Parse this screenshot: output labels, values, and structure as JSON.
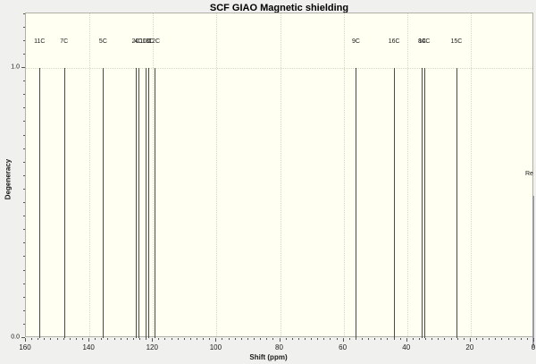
{
  "title": "SCF GIAO Magnetic shielding",
  "colors": {
    "window_bg": "#f0f0ee",
    "plot_bg": "#fffff2",
    "frame": "#b0b0a6",
    "grid": "#d6d6c6",
    "peak": "#4b4b45",
    "text": "#1a1a1a"
  },
  "right_edge_text": "Re",
  "chart_data": {
    "type": "bar",
    "subtype": "stick-spectrum",
    "title": "SCF GIAO Magnetic shielding",
    "xlabel": "Shift (ppm)",
    "ylabel": "Degeneracy",
    "xlim": [
      160,
      0
    ],
    "x_axis_reversed": true,
    "ylim": [
      0,
      1.2
    ],
    "x_major_ticks": [
      160,
      140,
      120,
      100,
      80,
      60,
      40,
      20,
      0
    ],
    "x_minor_tick_step": 2,
    "y_ticks": [
      {
        "value": 0.0,
        "label": "0.0"
      },
      {
        "value": 1.0,
        "label": "1.0"
      }
    ],
    "y_minor_tick_step": 0.05,
    "grid": "dotted",
    "peaks": [
      {
        "shift_ppm": 155.7,
        "degeneracy": 1.0,
        "label": "11C"
      },
      {
        "shift_ppm": 148.0,
        "degeneracy": 1.0,
        "label": "7C"
      },
      {
        "shift_ppm": 135.7,
        "degeneracy": 1.0,
        "label": "5C"
      },
      {
        "shift_ppm": 125.4,
        "degeneracy": 1.0,
        "label": "2C"
      },
      {
        "shift_ppm": 124.6,
        "degeneracy": 1.0,
        "label": "4C"
      },
      {
        "shift_ppm": 122.4,
        "degeneracy": 1.0,
        "label": "10C"
      },
      {
        "shift_ppm": 121.6,
        "degeneracy": 1.0,
        "label": "13C"
      },
      {
        "shift_ppm": 119.6,
        "degeneracy": 1.0,
        "label": "12C"
      },
      {
        "shift_ppm": 56.1,
        "degeneracy": 1.0,
        "label": "9C"
      },
      {
        "shift_ppm": 44.1,
        "degeneracy": 1.0,
        "label": "16C"
      },
      {
        "shift_ppm": 35.3,
        "degeneracy": 1.0,
        "label": "8C"
      },
      {
        "shift_ppm": 34.6,
        "degeneracy": 1.0,
        "label": "14C"
      },
      {
        "shift_ppm": 24.5,
        "degeneracy": 1.0,
        "label": "15C"
      }
    ]
  }
}
